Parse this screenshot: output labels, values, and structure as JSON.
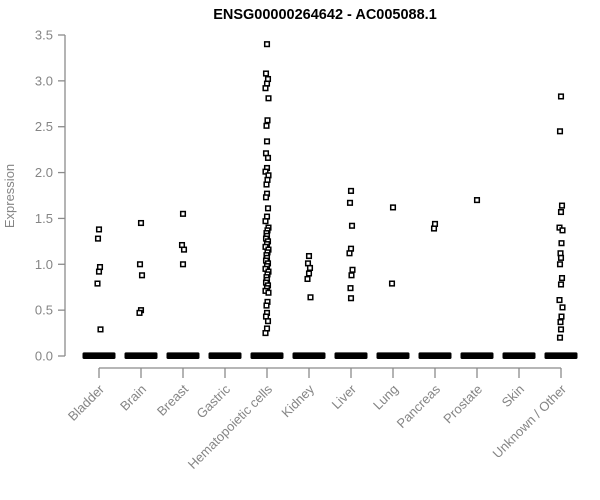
{
  "chart_data": {
    "type": "scatter",
    "subtype": "strip-plot",
    "title": "ENSG00000264642 - AC005088.1",
    "xlabel": "",
    "ylabel": "Expression",
    "ylim": [
      0,
      3.5
    ],
    "ytick_labels": [
      "0.0",
      "0.5",
      "1.0",
      "1.5",
      "2.0",
      "2.5",
      "3.0",
      "3.5"
    ],
    "grid": "off",
    "legend": "none",
    "marker": "open-black-square",
    "categories": [
      "Bladder",
      "Brain",
      "Breast",
      "Gastric",
      "Hematopoietic cells",
      "Kidney",
      "Liver",
      "Lung",
      "Pancreas",
      "Prostate",
      "Skin",
      "Unknown / Other"
    ],
    "groups": [
      {
        "label": "Bladder",
        "zero_cluster": true,
        "values": [
          1.38,
          1.28,
          0.97,
          0.92,
          0.79,
          0.29
        ]
      },
      {
        "label": "Brain",
        "zero_cluster": true,
        "values": [
          1.45,
          1.0,
          0.88,
          0.5,
          0.47
        ]
      },
      {
        "label": "Breast",
        "zero_cluster": true,
        "values": [
          1.55,
          1.21,
          1.16,
          1.0
        ]
      },
      {
        "label": "Gastric",
        "zero_cluster": true,
        "values": []
      },
      {
        "label": "Hematopoietic cells",
        "zero_cluster": true,
        "values": [
          3.4,
          3.08,
          3.02,
          2.97,
          2.92,
          2.81,
          2.57,
          2.51,
          2.34,
          2.21,
          2.16,
          2.05,
          2.01,
          1.97,
          1.92,
          1.87,
          1.77,
          1.73,
          1.61,
          1.52,
          1.47,
          1.4,
          1.37,
          1.34,
          1.31,
          1.28,
          1.25,
          1.22,
          1.19,
          1.16,
          1.13,
          1.1,
          1.07,
          1.04,
          1.01,
          0.98,
          0.95,
          0.92,
          0.89,
          0.86,
          0.83,
          0.8,
          0.77,
          0.74,
          0.71,
          0.69,
          0.59,
          0.55,
          0.47,
          0.43,
          0.38,
          0.3,
          0.25
        ]
      },
      {
        "label": "Kidney",
        "zero_cluster": true,
        "values": [
          1.09,
          1.01,
          0.96,
          0.9,
          0.84,
          0.64
        ]
      },
      {
        "label": "Liver",
        "zero_cluster": true,
        "values": [
          1.8,
          1.67,
          1.42,
          1.17,
          1.12,
          0.94,
          0.88,
          0.74,
          0.63
        ]
      },
      {
        "label": "Lung",
        "zero_cluster": true,
        "values": [
          1.62,
          0.79
        ]
      },
      {
        "label": "Pancreas",
        "zero_cluster": true,
        "values": [
          1.44,
          1.39
        ]
      },
      {
        "label": "Prostate",
        "zero_cluster": true,
        "values": [
          1.7
        ]
      },
      {
        "label": "Skin",
        "zero_cluster": true,
        "values": []
      },
      {
        "label": "Unknown / Other",
        "zero_cluster": true,
        "values": [
          2.83,
          2.45,
          1.64,
          1.57,
          1.4,
          1.37,
          1.23,
          1.12,
          1.07,
          1.0,
          0.85,
          0.78,
          0.61,
          0.53,
          0.43,
          0.37,
          0.29,
          0.2
        ]
      }
    ],
    "colors": {
      "title": "#000000",
      "axis_line": "#8b8b8b",
      "axis_text": "#858585",
      "marker_stroke": "#000000",
      "marker_fill": "#ffffff",
      "zero_bar": "#000000",
      "background": "#ffffff"
    }
  }
}
